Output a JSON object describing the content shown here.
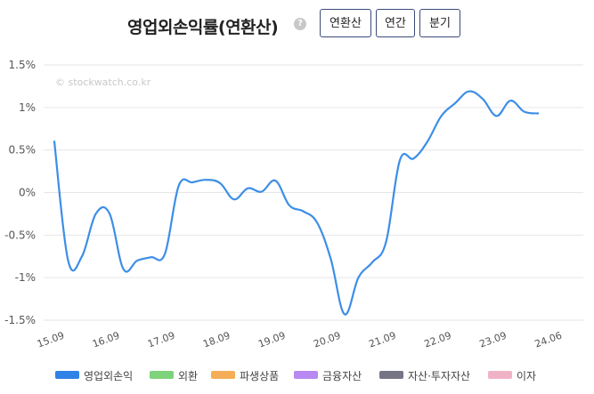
{
  "header": {
    "title": "영업외손익률(연환산)",
    "help_icon": "?",
    "tabs": [
      {
        "label": "연환산",
        "active": true
      },
      {
        "label": "연간",
        "active": false
      },
      {
        "label": "분기",
        "active": false
      }
    ]
  },
  "watermark": "© stockwatch.co.kr",
  "chart_data": {
    "type": "line",
    "ylim": [
      -1.5,
      1.5
    ],
    "yticks": [
      {
        "v": 1.5,
        "label": "1.5%"
      },
      {
        "v": 1.0,
        "label": "1%"
      },
      {
        "v": 0.5,
        "label": "0.5%"
      },
      {
        "v": 0.0,
        "label": "0%"
      },
      {
        "v": -0.5,
        "label": "-0.5%"
      },
      {
        "v": -1.0,
        "label": "-1%"
      },
      {
        "v": -1.5,
        "label": "-1.5%"
      }
    ],
    "xticks": [
      "15.09",
      "16.09",
      "17.09",
      "18.09",
      "19.09",
      "20.09",
      "21.09",
      "22.09",
      "23.09",
      "24.06"
    ],
    "grid": true,
    "series": [
      {
        "name": "영업외손익",
        "color": "#3d8ee6",
        "points": [
          [
            0.0,
            0.6
          ],
          [
            0.25,
            -0.8
          ],
          [
            0.5,
            -0.75
          ],
          [
            0.75,
            -0.25
          ],
          [
            1.0,
            -0.25
          ],
          [
            1.25,
            -0.9
          ],
          [
            1.5,
            -0.8
          ],
          [
            1.75,
            -0.76
          ],
          [
            2.0,
            -0.72
          ],
          [
            2.25,
            0.08
          ],
          [
            2.5,
            0.12
          ],
          [
            2.75,
            0.15
          ],
          [
            3.0,
            0.11
          ],
          [
            3.25,
            -0.08
          ],
          [
            3.5,
            0.05
          ],
          [
            3.75,
            0.01
          ],
          [
            4.0,
            0.14
          ],
          [
            4.25,
            -0.15
          ],
          [
            4.5,
            -0.22
          ],
          [
            4.75,
            -0.35
          ],
          [
            5.0,
            -0.78
          ],
          [
            5.25,
            -1.43
          ],
          [
            5.5,
            -1.0
          ],
          [
            5.75,
            -0.82
          ],
          [
            6.0,
            -0.58
          ],
          [
            6.25,
            0.38
          ],
          [
            6.5,
            0.4
          ],
          [
            6.75,
            0.6
          ],
          [
            7.0,
            0.9
          ],
          [
            7.25,
            1.05
          ],
          [
            7.5,
            1.19
          ],
          [
            7.75,
            1.1
          ],
          [
            8.0,
            0.9
          ],
          [
            8.25,
            1.08
          ],
          [
            8.5,
            0.95
          ],
          [
            8.75,
            0.93
          ]
        ]
      }
    ]
  },
  "legend": [
    {
      "label": "영업외손익",
      "color": "#2f82e6"
    },
    {
      "label": "외환",
      "color": "#7dd37b"
    },
    {
      "label": "파생상품",
      "color": "#f5ad57"
    },
    {
      "label": "금융자산",
      "color": "#b889f0"
    },
    {
      "label": "자산·투자자산",
      "color": "#757585"
    },
    {
      "label": "이자",
      "color": "#f0b3c6"
    }
  ]
}
